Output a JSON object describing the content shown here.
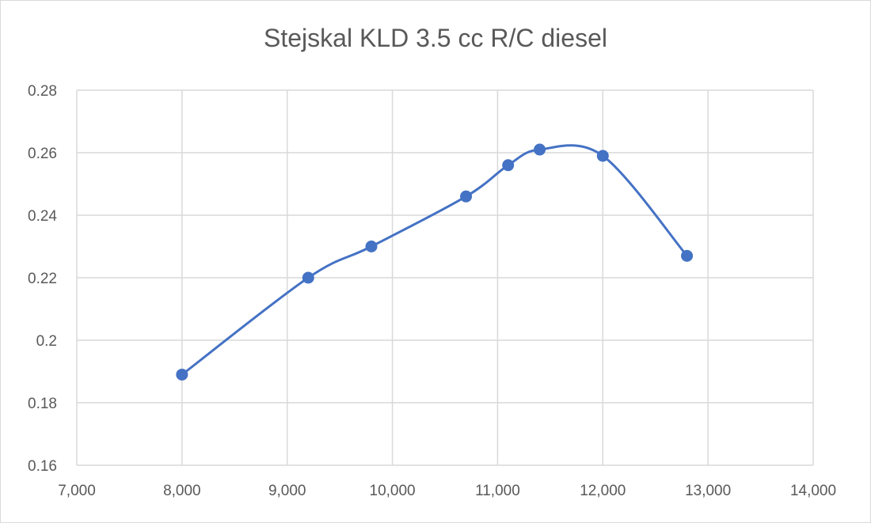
{
  "chart_data": {
    "type": "scatter",
    "title": "Stejskal KLD 3.5 cc R/C diesel",
    "xlabel": "",
    "ylabel": "",
    "xlim": [
      7000,
      14000
    ],
    "ylim": [
      0.16,
      0.28
    ],
    "xticks": [
      7000,
      8000,
      9000,
      10000,
      11000,
      12000,
      13000,
      14000
    ],
    "xtick_labels": [
      "7,000",
      "8,000",
      "9,000",
      "10,000",
      "11,000",
      "12,000",
      "13,000",
      "14,000"
    ],
    "yticks": [
      0.16,
      0.18,
      0.2,
      0.22,
      0.24,
      0.26,
      0.28
    ],
    "ytick_labels": [
      "0.16",
      "0.18",
      "0.2",
      "0.22",
      "0.24",
      "0.26",
      "0.28"
    ],
    "grid": true,
    "smooth_line": true,
    "series": [
      {
        "color": "#4472c4",
        "x": [
          8000,
          9200,
          9800,
          10700,
          11100,
          11400,
          12000,
          12800
        ],
        "y": [
          0.189,
          0.22,
          0.23,
          0.246,
          0.256,
          0.261,
          0.259,
          0.227
        ]
      }
    ]
  }
}
